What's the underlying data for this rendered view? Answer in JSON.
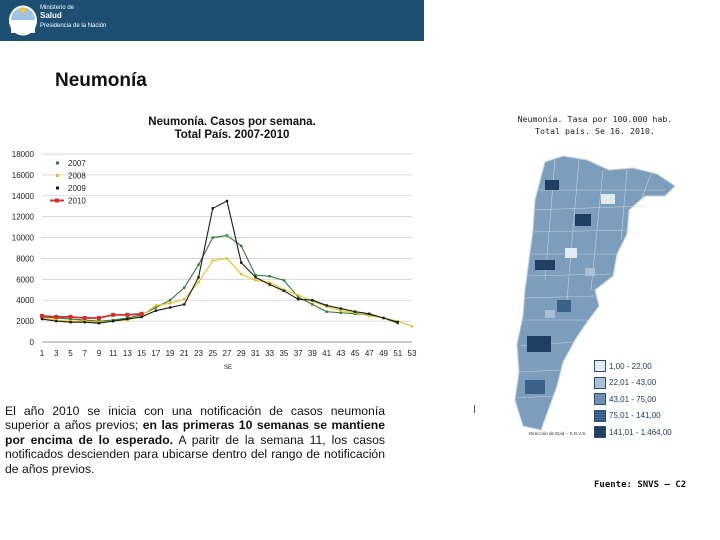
{
  "header": {
    "ministry_line1": "Ministerio de",
    "ministry_line2": "Salud",
    "ministry_line3": "Presidencia de la Nación",
    "banner_color": "#1d4f73"
  },
  "page_title": "Neumonía",
  "chart_data": {
    "type": "line",
    "title_line1": "Neumonía. Casos por semana.",
    "title_line2": "Total País. 2007-2010",
    "xlabel": "SE",
    "ylabel": "",
    "ylim": [
      0,
      18000
    ],
    "yticks": [
      0,
      2000,
      4000,
      6000,
      8000,
      10000,
      12000,
      14000,
      16000,
      18000
    ],
    "ytick_labels": [
      "0",
      "2000",
      "4000",
      "6000",
      "8000",
      "10000",
      "12000",
      "14000",
      "16000",
      "18000"
    ],
    "xlim": [
      1,
      53
    ],
    "xticks": [
      1,
      3,
      5,
      7,
      9,
      11,
      13,
      15,
      17,
      19,
      21,
      23,
      25,
      27,
      29,
      31,
      33,
      35,
      37,
      39,
      41,
      43,
      45,
      47,
      49,
      51,
      53
    ],
    "xtick_labels": [
      "1",
      "3",
      "5",
      "7",
      "9",
      "11",
      "13",
      "15",
      "17",
      "19",
      "21",
      "23",
      "25",
      "27",
      "29",
      "31",
      "33",
      "35",
      "37",
      "39",
      "41",
      "43",
      "45",
      "47",
      "49",
      "51",
      "53"
    ],
    "grid": true,
    "legend": "top-left",
    "series": [
      {
        "name": "2007",
        "color": "#2e7d32",
        "x": [
          1,
          3,
          5,
          7,
          9,
          11,
          13,
          15,
          17,
          19,
          21,
          23,
          25,
          27,
          29,
          31,
          33,
          35,
          37,
          39,
          41,
          43,
          45,
          47,
          49,
          51
        ],
        "values": [
          2400,
          2300,
          2200,
          2100,
          2000,
          2100,
          2300,
          2600,
          3300,
          4000,
          5200,
          7400,
          10000,
          10200,
          9200,
          6400,
          6300,
          5900,
          4300,
          3600,
          2900,
          2800,
          2700,
          2600,
          2300,
          1800
        ]
      },
      {
        "name": "2008",
        "color": "#e6c21f",
        "x": [
          1,
          3,
          5,
          7,
          9,
          11,
          13,
          15,
          17,
          19,
          21,
          23,
          25,
          27,
          29,
          31,
          33,
          35,
          37,
          39,
          41,
          43,
          45,
          47,
          49,
          51,
          53
        ],
        "values": [
          2300,
          2100,
          2000,
          2000,
          1900,
          2000,
          2100,
          2500,
          3500,
          3700,
          4100,
          5700,
          7800,
          8000,
          6500,
          5900,
          5700,
          5000,
          4500,
          3900,
          3400,
          3000,
          2800,
          2500,
          2300,
          2000,
          1500
        ]
      },
      {
        "name": "2009",
        "color": "#1a1a1a",
        "x": [
          1,
          3,
          5,
          7,
          9,
          11,
          13,
          15,
          17,
          19,
          21,
          23,
          25,
          27,
          29,
          31,
          33,
          35,
          37,
          39,
          41,
          43,
          45,
          47,
          49,
          51
        ],
        "values": [
          2200,
          2000,
          1900,
          1900,
          1800,
          2000,
          2200,
          2400,
          3000,
          3300,
          3600,
          6200,
          12800,
          13500,
          7600,
          6200,
          5500,
          4900,
          4100,
          4000,
          3500,
          3200,
          2900,
          2700,
          2300,
          1900
        ]
      },
      {
        "name": "2010",
        "color": "#d32f2f",
        "x": [
          1,
          3,
          5,
          7,
          9,
          11,
          13,
          15
        ],
        "values": [
          2500,
          2400,
          2400,
          2300,
          2300,
          2600,
          2600,
          2700
        ]
      }
    ]
  },
  "map": {
    "title_line1": "Neumonía. Tasa por 100.000 hab.",
    "title_line2": "Total país. Se 16. 2010.",
    "credit": "Dirección de Epid. - S.N.V.S.",
    "legend": [
      {
        "label": "1,00 - 22,00",
        "color": "#e2eaf2"
      },
      {
        "label": "22,01 - 43,00",
        "color": "#a9bfd6"
      },
      {
        "label": "43,01 - 75,00",
        "color": "#6f8fb2"
      },
      {
        "label": "75,01 - 141,00",
        "color": "#3d6288"
      },
      {
        "label": "141,01 - 1.464,00",
        "color": "#1f3f63"
      }
    ]
  },
  "description": {
    "part1": "El año 2010 se inicia con una notificación de casos neumonía superior a años previos; ",
    "bold": "en las primeras  10 semanas se mantiene por encima de lo esperado.",
    "part2": " A paritr de la semana 11, los casos notificados descienden para ubicarse dentro del rango de notificación de años previos."
  },
  "source": "Fuente: SNVS – C2"
}
